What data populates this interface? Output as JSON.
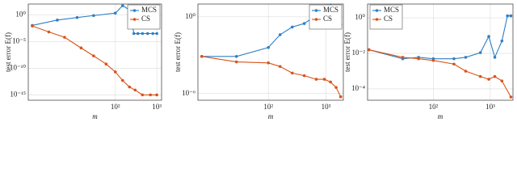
{
  "chart_data": [
    {
      "type": "line",
      "x_label": "m",
      "y_label": "test error E(f)",
      "log_x": true,
      "log_y": true,
      "grid": true,
      "legend": "upper right",
      "xlim": [
        0.8,
        1300
      ],
      "xticks": [
        {
          "value": 100,
          "label": "10²"
        },
        {
          "value": 1000,
          "label": "10³"
        }
      ],
      "ylim": [
        1e-16,
        100
      ],
      "yticks": [
        {
          "value": 1,
          "label": "10⁰"
        },
        {
          "value": 1e-05,
          "label": "10⁻⁵"
        },
        {
          "value": 1e-10,
          "label": "10⁻¹⁰"
        },
        {
          "value": 1e-15,
          "label": "10⁻¹⁵"
        }
      ],
      "series": [
        {
          "name": "MCS",
          "color": "#2f7fc6",
          "x": [
            1,
            4,
            12,
            30,
            100,
            150,
            220,
            280,
            350,
            450,
            600,
            800,
            1000
          ],
          "values": [
            0.01,
            0.1,
            0.3,
            0.7,
            2,
            50,
            8,
            0.0003,
            0.0003,
            0.0003,
            0.0003,
            0.0003,
            0.0003
          ]
        },
        {
          "name": "CS",
          "color": "#d95319",
          "x": [
            1,
            2.5,
            6,
            15,
            30,
            60,
            100,
            150,
            220,
            300,
            450,
            700,
            1000
          ],
          "values": [
            0.008,
            0.0006,
            6e-05,
            6e-07,
            2e-08,
            6e-10,
            2e-11,
            5e-13,
            3e-14,
            8e-15,
            1e-15,
            1e-15,
            1e-15
          ]
        }
      ]
    },
    {
      "type": "line",
      "x_label": "m",
      "y_label": "test error E(f)",
      "log_x": true,
      "log_y": true,
      "grid": true,
      "legend": "upper right",
      "xlim": [
        6,
        2000
      ],
      "xticks": [
        {
          "value": 100,
          "label": "10²"
        },
        {
          "value": 1000,
          "label": "10³"
        }
      ],
      "ylim": [
        3e-07,
        10
      ],
      "yticks": [
        {
          "value": 1,
          "label": "10⁰"
        },
        {
          "value": 1e-06,
          "label": "10⁻⁶"
        }
      ],
      "series": [
        {
          "name": "MCS",
          "color": "#2f7fc6",
          "x": [
            7,
            28,
            100,
            160,
            260,
            420,
            680,
            940,
            1200,
            1500,
            1800
          ],
          "values": [
            0.0008,
            0.0008,
            0.004,
            0.04,
            0.16,
            0.3,
            1.3,
            5.6,
            8,
            0.16,
            0.25
          ]
        },
        {
          "name": "CS",
          "color": "#d95319",
          "x": [
            7,
            28,
            100,
            160,
            260,
            420,
            680,
            940,
            1200,
            1500,
            1800
          ],
          "values": [
            0.0008,
            0.0003,
            0.00025,
            0.00013,
            4e-05,
            2.5e-05,
            1.3e-05,
            1.3e-05,
            8e-06,
            3e-06,
            5.6e-07
          ]
        }
      ]
    },
    {
      "type": "line",
      "x_label": "m",
      "y_label": "test error E(f)",
      "log_x": true,
      "log_y": true,
      "grid": true,
      "legend": "upper left",
      "xlim": [
        7,
        2500
      ],
      "xticks": [
        {
          "value": 100,
          "label": "10²"
        },
        {
          "value": 1000,
          "label": "10³"
        }
      ],
      "ylim": [
        2.3e-05,
        6
      ],
      "yticks": [
        {
          "value": 1,
          "label": "10⁰"
        },
        {
          "value": 0.01,
          "label": "10⁻²"
        },
        {
          "value": 0.0001,
          "label": "10⁻⁴"
        }
      ],
      "series": [
        {
          "name": "MCS",
          "color": "#2f7fc6",
          "x": [
            7.4,
            29,
            55,
            100,
            230,
            370,
            670,
            940,
            1200,
            1600,
            2000,
            2300
          ],
          "values": [
            0.016,
            0.005,
            0.006,
            0.005,
            0.005,
            0.006,
            0.011,
            0.09,
            0.006,
            0.05,
            1.3,
            1.3
          ]
        },
        {
          "name": "CS",
          "color": "#d95319",
          "x": [
            7.4,
            29,
            55,
            100,
            230,
            370,
            670,
            940,
            1200,
            1600,
            2300
          ],
          "values": [
            0.016,
            0.006,
            0.005,
            0.004,
            0.0025,
            0.001,
            0.0005,
            0.00035,
            0.0005,
            0.00028,
            3.5e-05
          ]
        }
      ]
    }
  ]
}
